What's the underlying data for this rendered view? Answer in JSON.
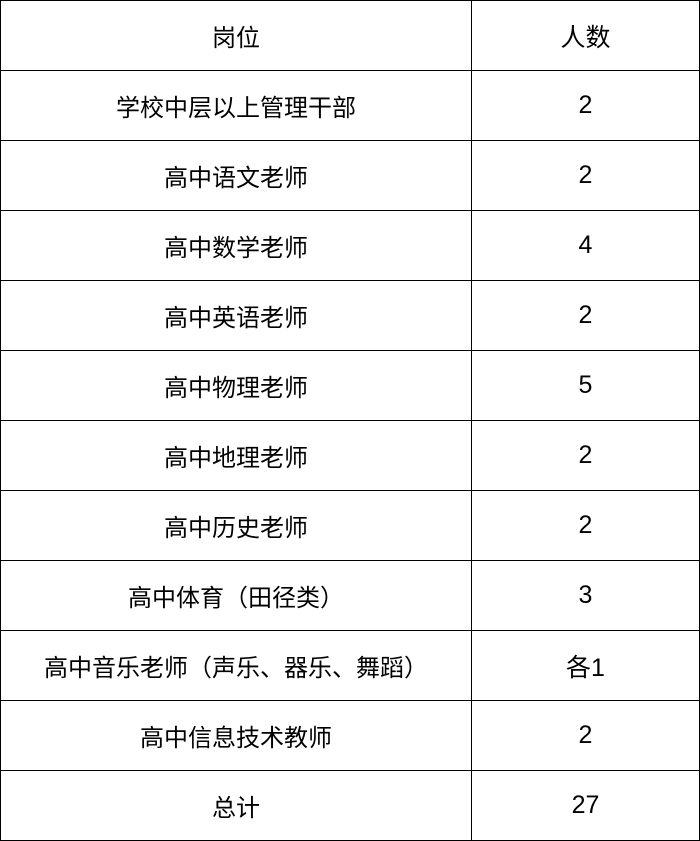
{
  "header": {
    "position": "岗位",
    "count": "人数"
  },
  "rows": [
    {
      "position": "学校中层以上管理干部",
      "count": "2"
    },
    {
      "position": "高中语文老师",
      "count": "2"
    },
    {
      "position": "高中数学老师",
      "count": "4"
    },
    {
      "position": "高中英语老师",
      "count": "2"
    },
    {
      "position": "高中物理老师",
      "count": "5"
    },
    {
      "position": "高中地理老师",
      "count": "2"
    },
    {
      "position": "高中历史老师",
      "count": "2"
    },
    {
      "position": "高中体育（田径类）",
      "count": "3"
    },
    {
      "position": "高中音乐老师（声乐、器乐、舞蹈）",
      "count": "各1"
    },
    {
      "position": "高中信息技术教师",
      "count": "2"
    },
    {
      "position": "总计",
      "count": "27"
    }
  ]
}
